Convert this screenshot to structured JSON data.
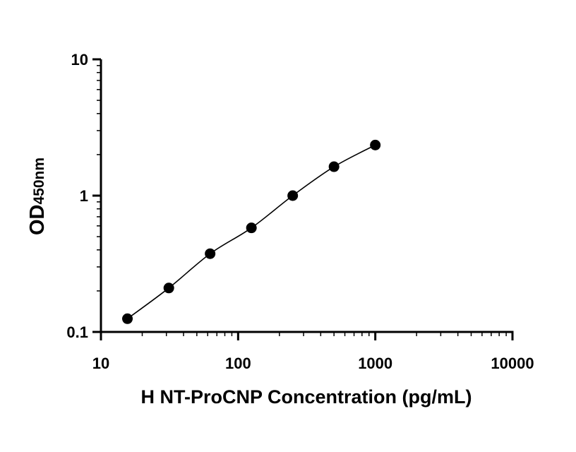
{
  "chart_data": {
    "type": "scatter",
    "title": "",
    "xlabel": "H NT-ProCNP Concentration (pg/mL)",
    "ylabel": "OD",
    "ylabel_subscript": "450nm",
    "x_scale": "log",
    "y_scale": "log",
    "xlim": [
      10,
      10000
    ],
    "ylim": [
      0.1,
      10
    ],
    "x_ticks": [
      10,
      100,
      1000,
      10000
    ],
    "x_tick_labels": [
      "10",
      "100",
      "1000",
      "10000"
    ],
    "y_ticks": [
      0.1,
      1,
      10
    ],
    "y_tick_labels": [
      "0.1",
      "1",
      "10"
    ],
    "grid": false,
    "series": [
      {
        "x": [
          15.6,
          31.25,
          62.5,
          125,
          250,
          500,
          1000
        ],
        "y": [
          0.125,
          0.21,
          0.375,
          0.58,
          1.0,
          1.63,
          2.35
        ],
        "fit_curve": true,
        "color": "#000000"
      }
    ]
  }
}
